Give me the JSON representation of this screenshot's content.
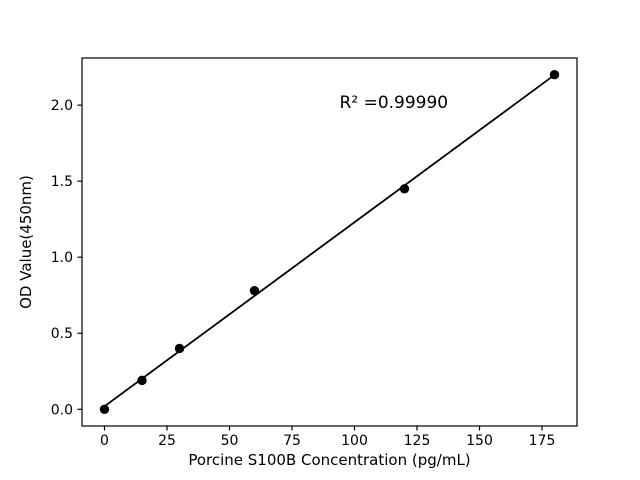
{
  "chart_data": {
    "type": "scatter",
    "title": "",
    "xlabel": "Porcine S100B Concentration (pg/mL)",
    "ylabel": "OD Value(450nm)",
    "x": [
      0,
      15,
      30,
      60,
      120,
      180
    ],
    "y": [
      0.0,
      0.19,
      0.4,
      0.78,
      1.45,
      2.2
    ],
    "fit_line": {
      "show": true,
      "x_start": 0,
      "x_end": 180
    },
    "annotation": {
      "text": "R² =0.99990",
      "fx": 0.63,
      "fy": 0.88
    },
    "xticks": [
      0,
      25,
      50,
      75,
      100,
      125,
      150,
      175
    ],
    "yticks": [
      0.0,
      0.5,
      1.0,
      1.5,
      2.0
    ],
    "ytick_decimals": 1,
    "xlim": [
      -9,
      189
    ],
    "ylim": [
      -0.11,
      2.31
    ],
    "grid": false,
    "legend": null,
    "marker_color": "#000000",
    "line_color": "#000000",
    "axis_color": "#000000",
    "background": "#ffffff"
  }
}
